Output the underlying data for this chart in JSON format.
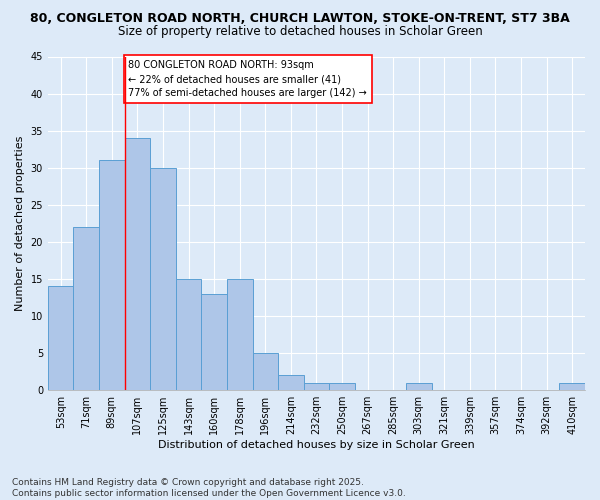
{
  "title1": "80, CONGLETON ROAD NORTH, CHURCH LAWTON, STOKE-ON-TRENT, ST7 3BA",
  "title2": "Size of property relative to detached houses in Scholar Green",
  "xlabel": "Distribution of detached houses by size in Scholar Green",
  "ylabel": "Number of detached properties",
  "categories": [
    "53sqm",
    "71sqm",
    "89sqm",
    "107sqm",
    "125sqm",
    "143sqm",
    "160sqm",
    "178sqm",
    "196sqm",
    "214sqm",
    "232sqm",
    "250sqm",
    "267sqm",
    "285sqm",
    "303sqm",
    "321sqm",
    "339sqm",
    "357sqm",
    "374sqm",
    "392sqm",
    "410sqm"
  ],
  "values": [
    14,
    22,
    31,
    34,
    30,
    15,
    13,
    15,
    5,
    2,
    1,
    1,
    0,
    0,
    1,
    0,
    0,
    0,
    0,
    0,
    1
  ],
  "bar_color": "#aec6e8",
  "bar_edge_color": "#5a9fd4",
  "background_color": "#ddeaf8",
  "vline_x": 2.5,
  "vline_color": "red",
  "annotation_text": "80 CONGLETON ROAD NORTH: 93sqm\n← 22% of detached houses are smaller (41)\n77% of semi-detached houses are larger (142) →",
  "annotation_box_color": "white",
  "annotation_box_edge": "red",
  "ylim": [
    0,
    45
  ],
  "yticks": [
    0,
    5,
    10,
    15,
    20,
    25,
    30,
    35,
    40,
    45
  ],
  "footer1": "Contains HM Land Registry data © Crown copyright and database right 2025.",
  "footer2": "Contains public sector information licensed under the Open Government Licence v3.0.",
  "title_fontsize": 9,
  "subtitle_fontsize": 8.5,
  "axis_label_fontsize": 8,
  "tick_fontsize": 7,
  "annotation_fontsize": 7,
  "footer_fontsize": 6.5
}
